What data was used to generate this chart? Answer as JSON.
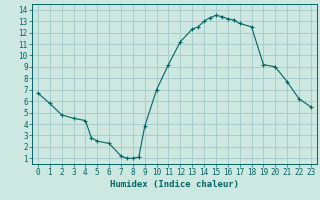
{
  "xlabel": "Humidex (Indice chaleur)",
  "background_color": "#cce8e0",
  "grid_color": "#aacccc",
  "line_color": "#006666",
  "x": [
    0,
    1,
    2,
    3,
    4,
    4.5,
    5,
    6,
    7,
    7.5,
    8,
    8.5,
    9,
    10,
    11,
    12,
    13,
    13.5,
    14,
    14.5,
    15,
    15.5,
    16,
    16.5,
    17,
    18,
    19,
    20,
    21,
    22,
    23
  ],
  "y": [
    6.7,
    5.8,
    4.8,
    4.5,
    4.3,
    2.8,
    2.5,
    2.3,
    1.2,
    1.0,
    1.0,
    1.1,
    3.8,
    7.0,
    9.2,
    11.2,
    12.3,
    12.5,
    13.0,
    13.3,
    13.5,
    13.4,
    13.2,
    13.1,
    12.8,
    12.5,
    9.2,
    9.0,
    7.7,
    6.2,
    5.5
  ],
  "xlim": [
    -0.5,
    23.5
  ],
  "ylim": [
    0.5,
    14.5
  ],
  "xticks": [
    0,
    1,
    2,
    3,
    4,
    5,
    6,
    7,
    8,
    9,
    10,
    11,
    12,
    13,
    14,
    15,
    16,
    17,
    18,
    19,
    20,
    21,
    22,
    23
  ],
  "yticks": [
    1,
    2,
    3,
    4,
    5,
    6,
    7,
    8,
    9,
    10,
    11,
    12,
    13,
    14
  ],
  "xlabel_fontsize": 6.5,
  "tick_fontsize": 5.5
}
